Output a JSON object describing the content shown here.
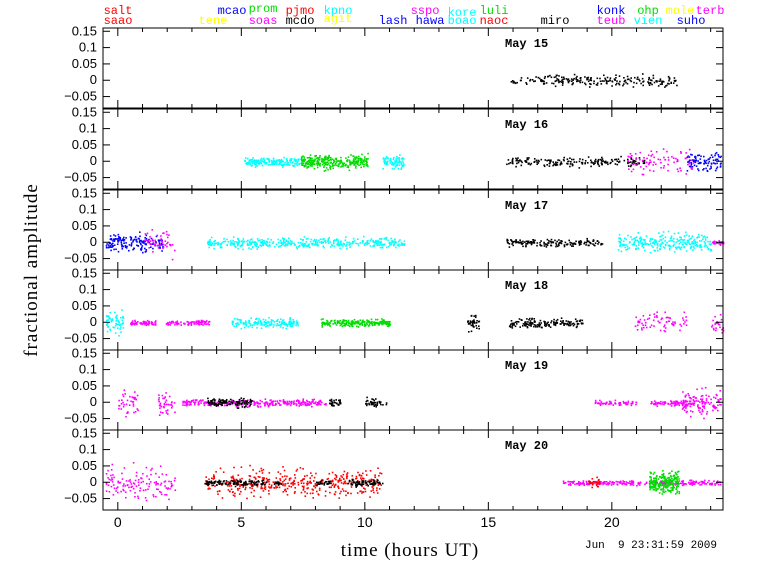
{
  "chart_data": {
    "type": "scatter",
    "title": "",
    "xlabel": "time (hours UT)",
    "ylabel": "fractional amplitude",
    "xlim": [
      -0.6,
      24.5
    ],
    "ylim": [
      -0.085,
      0.16
    ],
    "xticks": [
      0,
      5,
      10,
      15,
      20
    ],
    "yticks": [
      0.15,
      0.1,
      0.05,
      0,
      -0.05
    ],
    "ytick_labels": [
      "0.15",
      "0.1",
      "0.05",
      "0",
      "−0.05"
    ],
    "timestamp": "Jun  9 23:31:59 2009",
    "sites": [
      {
        "name": "salt",
        "color": "#ff0000"
      },
      {
        "name": "saao",
        "color": "#ff0000"
      },
      {
        "name": "tene",
        "color": "#ffff00"
      },
      {
        "name": "mcao",
        "color": "#0000ff"
      },
      {
        "name": "prom",
        "color": "#00dd00"
      },
      {
        "name": "soas",
        "color": "#ff00ff"
      },
      {
        "name": "pjmo",
        "color": "#ff0000"
      },
      {
        "name": "mcdo",
        "color": "#000000"
      },
      {
        "name": "kpno",
        "color": "#00ffff"
      },
      {
        "name": "agit",
        "color": "#ffff00"
      },
      {
        "name": "lash",
        "color": "#0000ff"
      },
      {
        "name": "sspo",
        "color": "#ff00ff"
      },
      {
        "name": "hawa",
        "color": "#0000ff"
      },
      {
        "name": "kore",
        "color": "#00ffff"
      },
      {
        "name": "boao",
        "color": "#00ffff"
      },
      {
        "name": "luli",
        "color": "#00dd00"
      },
      {
        "name": "naoc",
        "color": "#ff0000"
      },
      {
        "name": "miro",
        "color": "#000000"
      },
      {
        "name": "konk",
        "color": "#0000ff"
      },
      {
        "name": "teub",
        "color": "#ff00ff"
      },
      {
        "name": "ohp",
        "color": "#00dd00"
      },
      {
        "name": "vien",
        "color": "#00ffff"
      },
      {
        "name": "mole",
        "color": "#ffff00"
      },
      {
        "name": "suho",
        "color": "#0000ff"
      },
      {
        "name": "terb",
        "color": "#ff00ff"
      }
    ],
    "panels": [
      {
        "date": "May 15",
        "series": [
          {
            "site": "miro",
            "color": "#000000",
            "x_range": [
              15.9,
              22.6
            ],
            "amplitude": 0.025,
            "density": 220
          }
        ]
      },
      {
        "date": "May 16",
        "series": [
          {
            "site": "boao",
            "color": "#00ffff",
            "x_range": [
              5.1,
              7.4
            ],
            "amplitude": 0.02,
            "density": 170
          },
          {
            "site": "luli",
            "color": "#00dd00",
            "x_range": [
              7.4,
              10.1
            ],
            "amplitude": 0.03,
            "density": 300
          },
          {
            "site": "boao",
            "color": "#00ffff",
            "x_range": [
              10.7,
              11.6
            ],
            "amplitude": 0.03,
            "density": 80
          },
          {
            "site": "miro",
            "color": "#000000",
            "x_range": [
              15.7,
              21.3
            ],
            "amplitude": 0.02,
            "density": 190
          },
          {
            "site": "teub",
            "color": "#ff00ff",
            "x_range": [
              20.6,
              23.3
            ],
            "amplitude": 0.055,
            "density": 90
          },
          {
            "site": "konk",
            "color": "#0000ff",
            "x_range": [
              23.0,
              24.4
            ],
            "amplitude": 0.04,
            "density": 90
          }
        ]
      },
      {
        "date": "May 17",
        "series": [
          {
            "site": "konk",
            "color": "#0000ff",
            "x_range": [
              -0.5,
              1.8
            ],
            "amplitude": 0.04,
            "density": 160
          },
          {
            "site": "teub",
            "color": "#ff00ff",
            "x_range": [
              1.0,
              2.3
            ],
            "amplitude": 0.06,
            "density": 50
          },
          {
            "site": "boao",
            "color": "#00ffff",
            "x_range": [
              3.6,
              11.6
            ],
            "amplitude": 0.022,
            "density": 420
          },
          {
            "site": "miro",
            "color": "#000000",
            "x_range": [
              15.7,
              19.6
            ],
            "amplitude": 0.015,
            "density": 160
          },
          {
            "site": "vien",
            "color": "#00ffff",
            "x_range": [
              20.2,
              24.0
            ],
            "amplitude": 0.04,
            "density": 260
          },
          {
            "site": "terb",
            "color": "#ff00ff",
            "x_range": [
              24.0,
              24.5
            ],
            "amplitude": 0.01,
            "density": 30
          }
        ]
      },
      {
        "date": "May 18",
        "series": [
          {
            "site": "vien",
            "color": "#00ffff",
            "x_range": [
              -0.5,
              0.2
            ],
            "amplitude": 0.05,
            "density": 60
          },
          {
            "site": "terb",
            "color": "#ff00ff",
            "x_range": [
              0.5,
              1.6
            ],
            "amplitude": 0.01,
            "density": 60
          },
          {
            "site": "terb",
            "color": "#ff00ff",
            "x_range": [
              1.9,
              3.7
            ],
            "amplitude": 0.012,
            "density": 80
          },
          {
            "site": "boao",
            "color": "#00ffff",
            "x_range": [
              4.6,
              7.3
            ],
            "amplitude": 0.02,
            "density": 170
          },
          {
            "site": "luli",
            "color": "#00dd00",
            "x_range": [
              8.2,
              11.0
            ],
            "amplitude": 0.015,
            "density": 220
          },
          {
            "site": "miro",
            "color": "#000000",
            "x_range": [
              14.1,
              14.6
            ],
            "amplitude": 0.03,
            "density": 40
          },
          {
            "site": "miro",
            "color": "#000000",
            "x_range": [
              15.8,
              18.8
            ],
            "amplitude": 0.02,
            "density": 150
          },
          {
            "site": "teub",
            "color": "#ff00ff",
            "x_range": [
              20.9,
              23.0
            ],
            "amplitude": 0.04,
            "density": 70
          },
          {
            "site": "terb",
            "color": "#ff00ff",
            "x_range": [
              24.0,
              24.5
            ],
            "amplitude": 0.04,
            "density": 25
          }
        ]
      },
      {
        "date": "May 19",
        "series": [
          {
            "site": "terb",
            "color": "#ff00ff",
            "x_range": [
              0.0,
              0.8
            ],
            "amplitude": 0.05,
            "density": 40
          },
          {
            "site": "terb",
            "color": "#ff00ff",
            "x_range": [
              1.6,
              2.3
            ],
            "amplitude": 0.05,
            "density": 40
          },
          {
            "site": "terb",
            "color": "#ff00ff",
            "x_range": [
              2.6,
              8.4
            ],
            "amplitude": 0.015,
            "density": 300
          },
          {
            "site": "mcdo",
            "color": "#000000",
            "x_range": [
              3.6,
              5.4
            ],
            "amplitude": 0.02,
            "density": 110
          },
          {
            "site": "mcdo",
            "color": "#000000",
            "x_range": [
              8.5,
              9.0
            ],
            "amplitude": 0.02,
            "density": 30
          },
          {
            "site": "mcdo",
            "color": "#000000",
            "x_range": [
              10.0,
              10.9
            ],
            "amplitude": 0.02,
            "density": 40
          },
          {
            "site": "teub",
            "color": "#ff00ff",
            "x_range": [
              19.3,
              21.0
            ],
            "amplitude": 0.01,
            "density": 60
          },
          {
            "site": "teub",
            "color": "#ff00ff",
            "x_range": [
              21.5,
              23.4
            ],
            "amplitude": 0.012,
            "density": 80
          },
          {
            "site": "terb",
            "color": "#ff00ff",
            "x_range": [
              22.8,
              24.4
            ],
            "amplitude": 0.06,
            "density": 120
          }
        ]
      },
      {
        "date": "May 20",
        "series": [
          {
            "site": "terb",
            "color": "#ff00ff",
            "x_range": [
              -0.5,
              2.3
            ],
            "amplitude": 0.07,
            "density": 130
          },
          {
            "site": "pjmo",
            "color": "#ff0000",
            "x_range": [
              3.5,
              10.7
            ],
            "amplitude": 0.06,
            "density": 420
          },
          {
            "site": "mcdo",
            "color": "#000000",
            "x_range": [
              3.5,
              6.0
            ],
            "amplitude": 0.012,
            "density": 110
          },
          {
            "site": "mcdo",
            "color": "#000000",
            "x_range": [
              6.3,
              6.6
            ],
            "amplitude": 0.01,
            "density": 15
          },
          {
            "site": "mcdo",
            "color": "#000000",
            "x_range": [
              8.0,
              8.6
            ],
            "amplitude": 0.01,
            "density": 30
          },
          {
            "site": "mcdo",
            "color": "#000000",
            "x_range": [
              9.3,
              10.7
            ],
            "amplitude": 0.015,
            "density": 70
          },
          {
            "site": "teub",
            "color": "#ff00ff",
            "x_range": [
              18.0,
              24.4
            ],
            "amplitude": 0.01,
            "density": 260
          },
          {
            "site": "saao",
            "color": "#ff0000",
            "x_range": [
              19.0,
              19.5
            ],
            "amplitude": 0.02,
            "density": 30
          },
          {
            "site": "ohp",
            "color": "#00dd00",
            "x_range": [
              21.5,
              22.7
            ],
            "amplitude": 0.045,
            "density": 220
          }
        ]
      }
    ]
  }
}
